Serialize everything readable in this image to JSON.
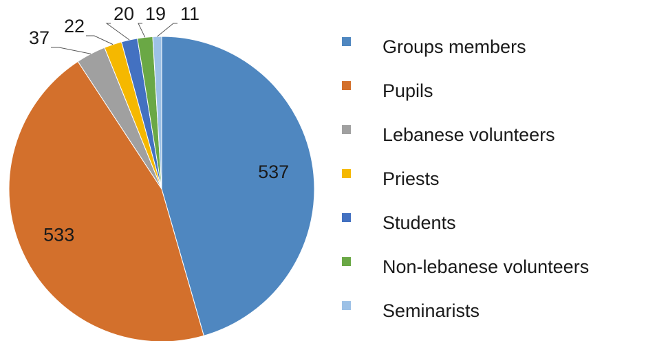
{
  "chart_data": {
    "type": "pie",
    "categories": [
      "Groups members",
      "Pupils",
      "Lebanese volunteers",
      "Priests",
      "Students",
      "Non-lebanese volunteers",
      "Seminarists"
    ],
    "values": [
      537,
      533,
      37,
      22,
      20,
      19,
      11
    ],
    "colors": [
      "#4f87c0",
      "#d3702c",
      "#a0a0a0",
      "#f5b800",
      "#4371c1",
      "#6aa845",
      "#9dc1e6"
    ],
    "legend": "right"
  }
}
